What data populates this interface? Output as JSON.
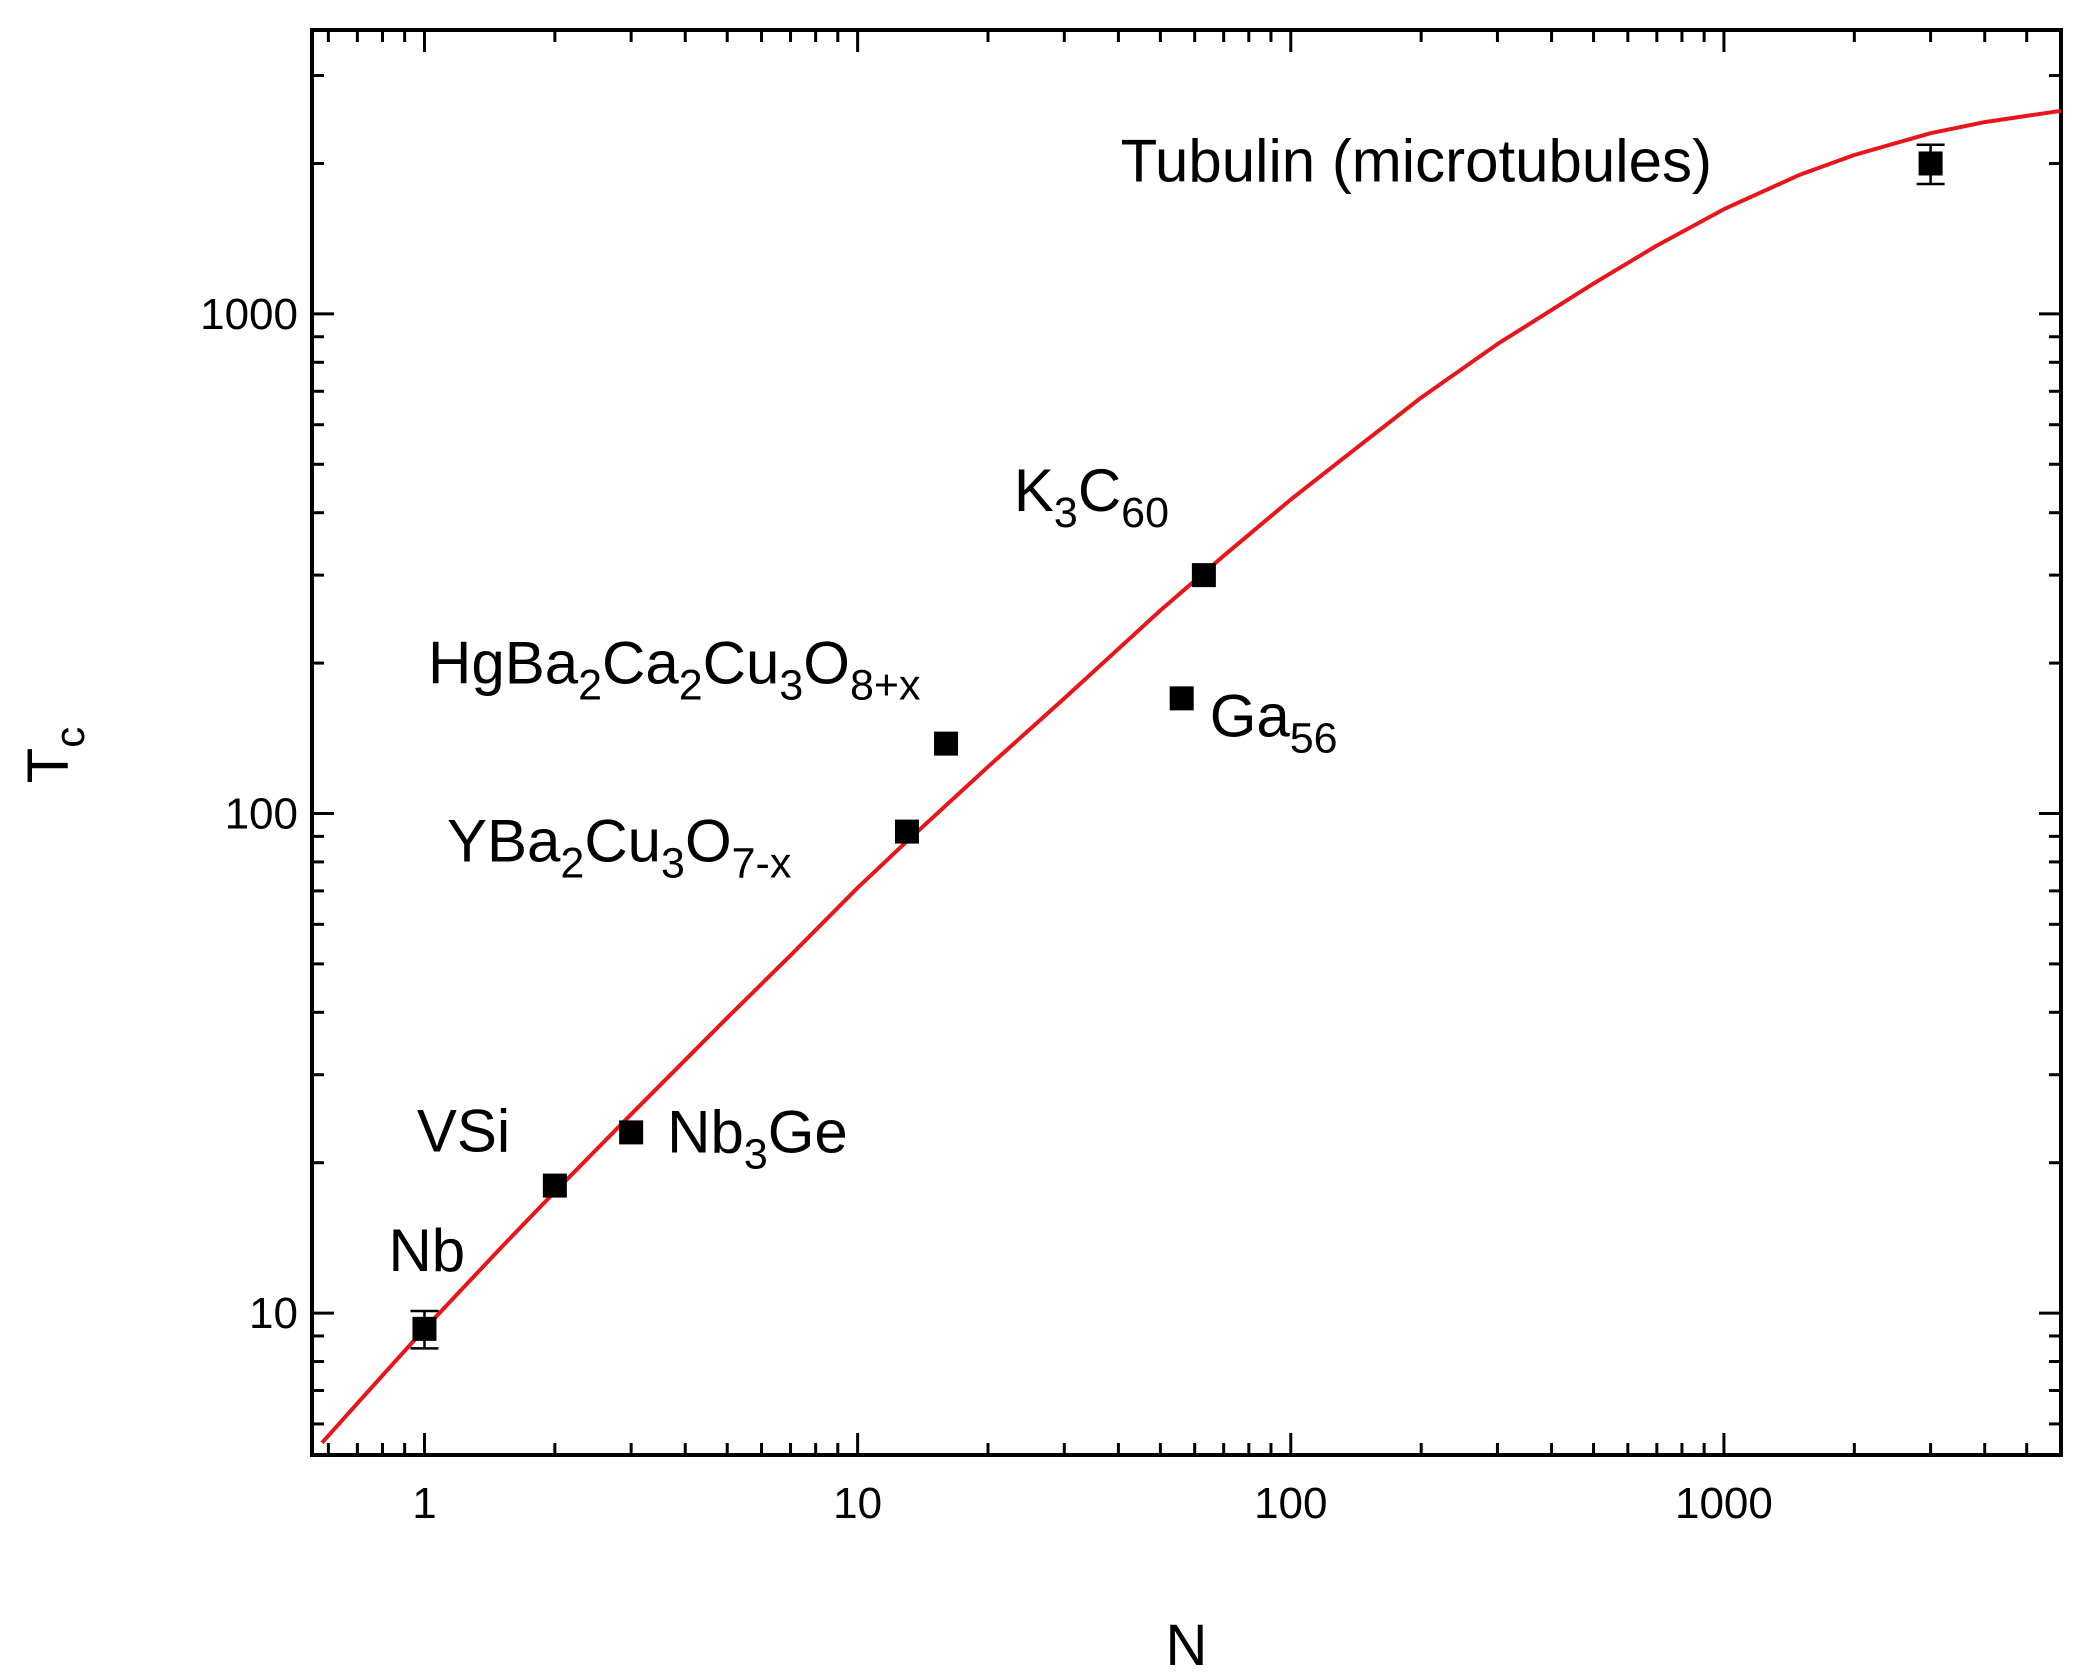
{
  "chart_data": {
    "type": "scatter",
    "title": "",
    "xlabel": "N",
    "ylabel": {
      "main": "T",
      "sub": "c"
    },
    "xscale": "log",
    "yscale": "log",
    "xlim": [
      0.55,
      6000
    ],
    "ylim": [
      5.2,
      3700
    ],
    "xticks": [
      1,
      10,
      100,
      1000
    ],
    "xtick_labels": [
      "1",
      "10",
      "100",
      "1000"
    ],
    "yticks": [
      10,
      100,
      1000
    ],
    "ytick_labels": [
      "10",
      "100",
      "1000"
    ],
    "grid": false,
    "legend": "none",
    "marker_color": "#000000",
    "fit_color": "#e8151b",
    "points": [
      {
        "x": 1,
        "y": 9.3,
        "yerr": 0.8,
        "label": [
          [
            "Nb",
            ""
          ]
        ]
      },
      {
        "x": 2,
        "y": 18,
        "label": [
          [
            "VSi",
            ""
          ]
        ]
      },
      {
        "x": 3,
        "y": 23,
        "label": [
          [
            "Nb",
            ""
          ],
          [
            "3",
            "sub"
          ],
          [
            "Ge",
            ""
          ]
        ]
      },
      {
        "x": 13,
        "y": 92,
        "label": [
          [
            "YBa",
            ""
          ],
          [
            "2",
            "sub"
          ],
          [
            "Cu",
            ""
          ],
          [
            "3",
            "sub"
          ],
          [
            "O",
            ""
          ],
          [
            "7-x",
            "sub"
          ]
        ]
      },
      {
        "x": 16,
        "y": 138,
        "label": [
          [
            "HgBa",
            ""
          ],
          [
            "2",
            "sub"
          ],
          [
            "Ca",
            ""
          ],
          [
            "2",
            "sub"
          ],
          [
            "Cu",
            ""
          ],
          [
            "3",
            "sub"
          ],
          [
            "O",
            ""
          ],
          [
            "8+x",
            "sub"
          ]
        ]
      },
      {
        "x": 56,
        "y": 170,
        "label": [
          [
            "Ga",
            ""
          ],
          [
            "56",
            "sub"
          ]
        ]
      },
      {
        "x": 63,
        "y": 300,
        "label": [
          [
            "K",
            ""
          ],
          [
            "3",
            "sub"
          ],
          [
            "C",
            ""
          ],
          [
            "60",
            "sub"
          ]
        ]
      },
      {
        "x": 3000,
        "y": 2000,
        "yerr": 180,
        "label": [
          [
            "Tubulin (microtubules)",
            ""
          ]
        ]
      }
    ],
    "fit_curve": {
      "x": [
        0.58,
        0.7,
        1,
        1.5,
        2,
        3,
        5,
        7,
        10,
        13,
        20,
        30,
        50,
        70,
        100,
        150,
        200,
        300,
        500,
        700,
        1000,
        1500,
        2000,
        3000,
        4000,
        6000
      ],
      "y": [
        5.5,
        6.6,
        9.3,
        13.5,
        17.5,
        25,
        39,
        52,
        71,
        88,
        124,
        170,
        255,
        328,
        425,
        560,
        680,
        870,
        1150,
        1370,
        1620,
        1900,
        2080,
        2300,
        2420,
        2550
      ]
    }
  }
}
